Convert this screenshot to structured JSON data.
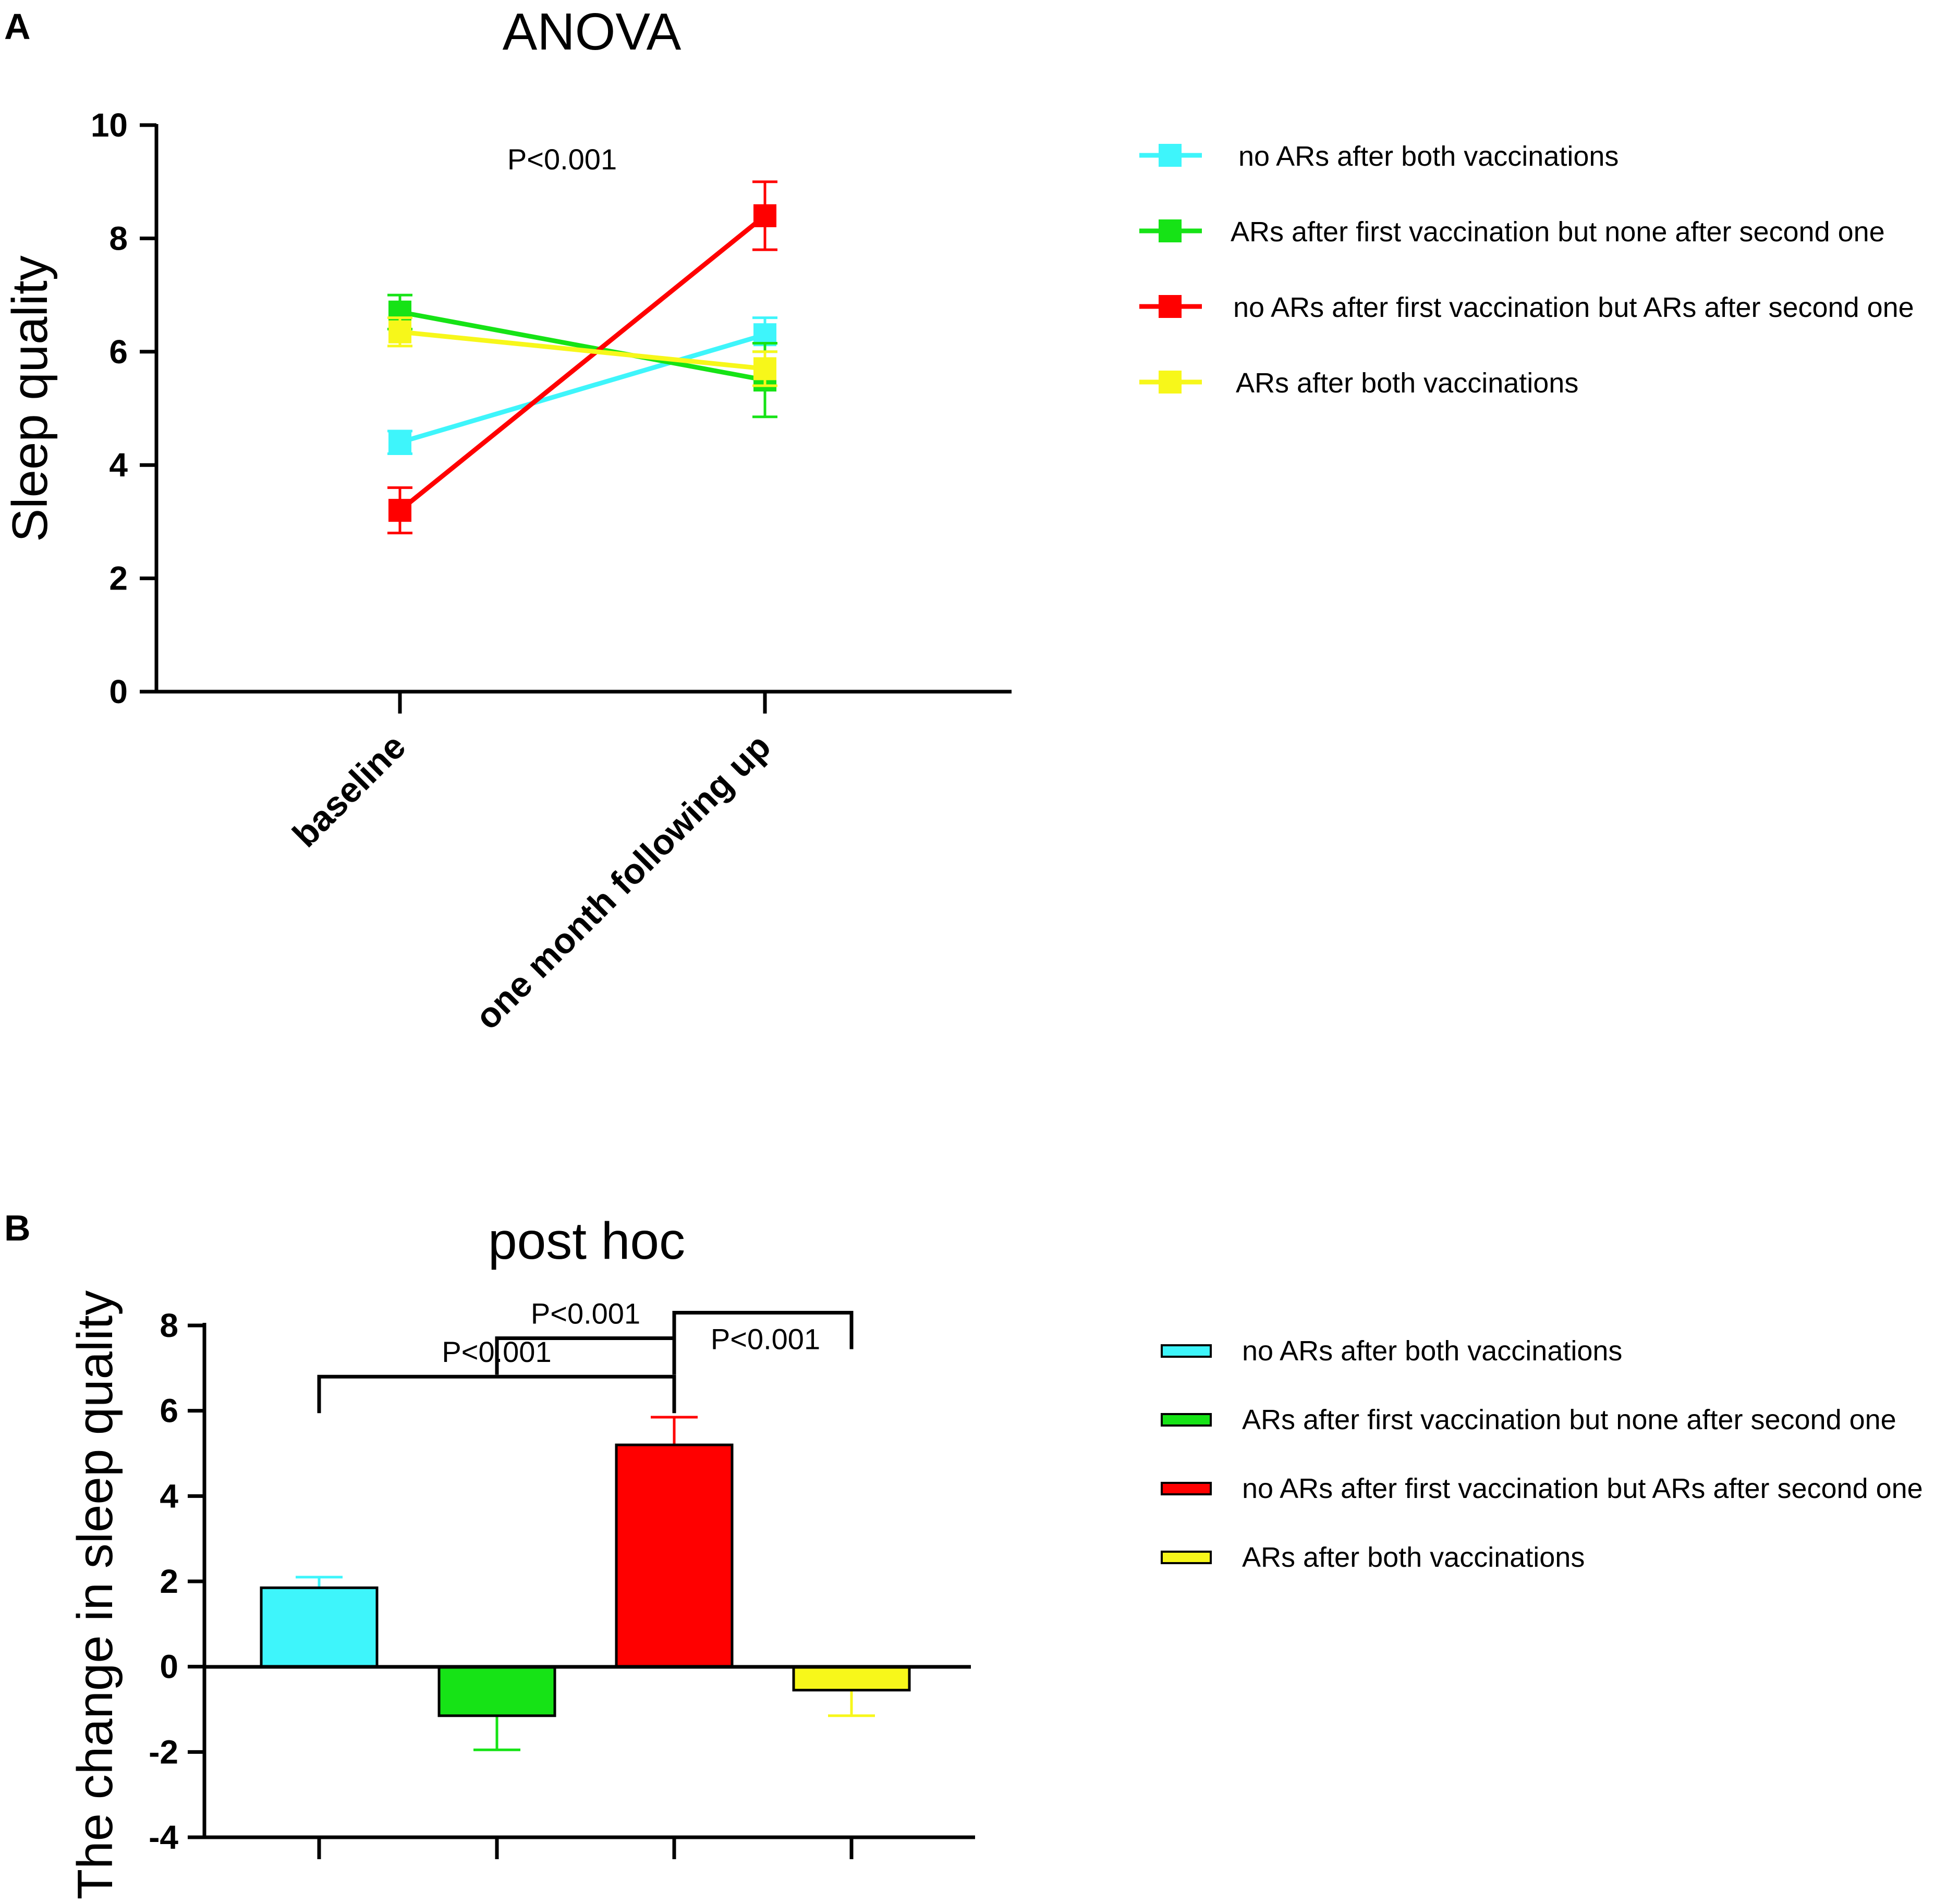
{
  "colors": {
    "cyan": "#3ef5fb",
    "green": "#16e316",
    "red": "#ff0000",
    "yellow": "#f7f71a",
    "axis": "#000000"
  },
  "chart_data": [
    {
      "panel": "A",
      "type": "line",
      "title": "ANOVA",
      "xlabel": "",
      "ylabel": "Sleep quality",
      "ylim": [
        0,
        10
      ],
      "yticks": [
        0,
        2,
        4,
        6,
        8,
        10
      ],
      "categories": [
        "baseline",
        "one month following up"
      ],
      "annotation": "P<0.001",
      "legend_position": "top-right",
      "series": [
        {
          "name": "no ARs after both vaccinations",
          "color": "#3ef5fb",
          "values": [
            4.4,
            6.3
          ],
          "errors": [
            0.2,
            0.3
          ]
        },
        {
          "name": "ARs after first vaccination but none after second one",
          "color": "#16e316",
          "values": [
            6.7,
            5.5
          ],
          "errors": [
            0.3,
            0.65
          ]
        },
        {
          "name": "no ARs after first vaccination but ARs after second one",
          "color": "#ff0000",
          "values": [
            3.2,
            8.4
          ],
          "errors": [
            0.4,
            0.6
          ]
        },
        {
          "name": "ARs after both vaccinations",
          "color": "#f7f71a",
          "values": [
            6.35,
            5.7
          ],
          "errors": [
            0.25,
            0.3
          ]
        }
      ]
    },
    {
      "panel": "B",
      "type": "bar",
      "title": "post hoc",
      "xlabel": "",
      "ylabel": "The change in sleep quality",
      "ylim": [
        -4,
        8
      ],
      "yticks": [
        -4,
        -2,
        0,
        2,
        4,
        6,
        8
      ],
      "categories": [
        "no ARs after both vaccinations",
        "ARs after first vaccination but none after second one",
        "no ARs after first vaccination but ARs after second one",
        "ARs after both vaccinations"
      ],
      "values": [
        1.85,
        -1.15,
        5.2,
        -0.55
      ],
      "errors": [
        0.25,
        0.8,
        0.65,
        0.6
      ],
      "colors": [
        "#3ef5fb",
        "#16e316",
        "#ff0000",
        "#f7f71a"
      ],
      "legend_position": "right",
      "comparisons": [
        {
          "from": 0,
          "to": 2,
          "label": "P<0.001",
          "y": 6.8
        },
        {
          "from": 1,
          "to": 2,
          "label": "P<0.001",
          "y": 7.7
        },
        {
          "from": 2,
          "to": 3,
          "label": "P<0.001",
          "y": 8.3
        }
      ]
    }
  ]
}
